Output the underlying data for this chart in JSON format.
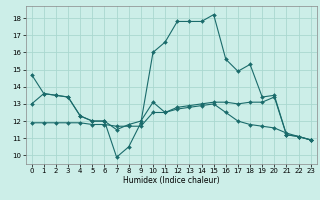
{
  "xlabel": "Humidex (Indice chaleur)",
  "bg_color": "#cceee8",
  "grid_color": "#aad8d0",
  "line_color": "#1a6b6b",
  "xlim": [
    -0.5,
    23.5
  ],
  "ylim": [
    9.5,
    18.7
  ],
  "yticks": [
    10,
    11,
    12,
    13,
    14,
    15,
    16,
    17,
    18
  ],
  "xticks": [
    0,
    1,
    2,
    3,
    4,
    5,
    6,
    7,
    8,
    9,
    10,
    11,
    12,
    13,
    14,
    15,
    16,
    17,
    18,
    19,
    20,
    21,
    22,
    23
  ],
  "curve1_x": [
    0,
    1,
    2,
    3,
    4,
    5,
    6,
    7,
    8,
    9,
    10,
    11,
    12,
    13,
    14,
    15,
    16,
    17,
    18,
    19,
    20,
    21,
    22,
    23
  ],
  "curve1_y": [
    14.7,
    13.6,
    13.5,
    13.4,
    12.3,
    12.0,
    12.0,
    9.9,
    10.5,
    11.9,
    16.0,
    16.6,
    17.8,
    17.8,
    17.8,
    18.2,
    15.6,
    14.9,
    15.3,
    13.4,
    13.5,
    11.2,
    11.1,
    10.9
  ],
  "curve2_x": [
    0,
    1,
    2,
    3,
    4,
    5,
    6,
    7,
    8,
    9,
    10,
    11,
    12,
    13,
    14,
    15,
    16,
    17,
    18,
    19,
    20,
    21,
    22,
    23
  ],
  "curve2_y": [
    13.0,
    13.6,
    13.5,
    13.4,
    12.3,
    12.0,
    12.0,
    11.5,
    11.8,
    12.0,
    13.1,
    12.5,
    12.8,
    12.9,
    13.0,
    13.1,
    13.1,
    13.0,
    13.1,
    13.1,
    13.4,
    11.2,
    11.1,
    10.9
  ],
  "curve3_x": [
    0,
    1,
    2,
    3,
    4,
    5,
    6,
    7,
    8,
    9,
    10,
    11,
    12,
    13,
    14,
    15,
    16,
    17,
    18,
    19,
    20,
    21,
    22,
    23
  ],
  "curve3_y": [
    11.9,
    11.9,
    11.9,
    11.9,
    11.9,
    11.8,
    11.8,
    11.7,
    11.7,
    11.7,
    12.5,
    12.5,
    12.7,
    12.8,
    12.9,
    13.0,
    12.5,
    12.0,
    11.8,
    11.7,
    11.6,
    11.3,
    11.1,
    10.9
  ]
}
